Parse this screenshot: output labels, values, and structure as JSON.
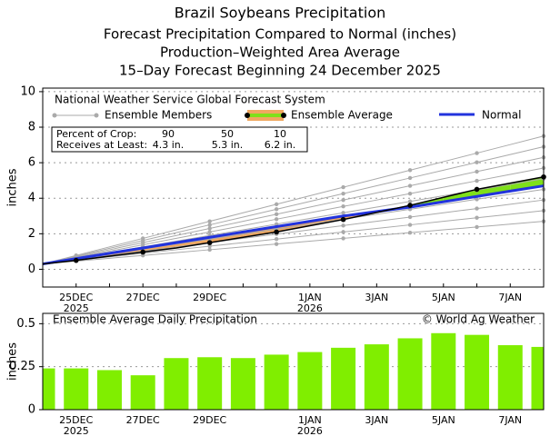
{
  "chart_data": [
    {
      "type": "line",
      "title": "Brazil Soybeans Precipitation",
      "subtitles": [
        "Forecast Precipitation Compared to Normal (inches)",
        "Production–Weighted Area Average",
        "15–Day Forecast Beginning 24 December 2025"
      ],
      "legend_title": "National Weather Service Global Forecast System",
      "y_label": "inches",
      "categories": [
        null,
        "25DEC",
        null,
        "27DEC",
        null,
        "29DEC",
        null,
        null,
        "1JAN",
        null,
        "3JAN",
        null,
        "5JAN",
        null,
        "7JAN",
        null
      ],
      "category_years": [
        null,
        "2025",
        null,
        null,
        null,
        null,
        null,
        null,
        "2026",
        null,
        null,
        null,
        null,
        null,
        null,
        null
      ],
      "ylim": [
        -1,
        10.2
      ],
      "yticks": [
        0,
        2,
        4,
        6,
        8,
        10
      ],
      "grid": true,
      "members": {
        "name": "Ensemble Members",
        "color": "#aaaaaa",
        "series": [
          [
            0.3,
            0.46,
            0.62,
            0.78,
            0.94,
            1.1,
            1.26,
            1.42,
            1.58,
            1.74,
            1.9,
            2.06,
            2.22,
            2.38,
            2.54,
            2.7
          ],
          [
            0.3,
            0.5,
            0.7,
            0.9,
            1.1,
            1.3,
            1.5,
            1.7,
            1.9,
            2.1,
            2.3,
            2.5,
            2.7,
            2.9,
            3.1,
            3.3
          ],
          [
            0.3,
            0.54,
            0.78,
            1.02,
            1.26,
            1.5,
            1.74,
            1.98,
            2.22,
            2.46,
            2.7,
            2.94,
            3.18,
            3.42,
            3.66,
            3.9
          ],
          [
            0.3,
            0.58,
            0.86,
            1.14,
            1.42,
            1.7,
            1.98,
            2.26,
            2.54,
            2.82,
            3.1,
            3.38,
            3.66,
            3.94,
            4.22,
            4.5
          ],
          [
            0.3,
            0.62,
            0.94,
            1.26,
            1.58,
            1.9,
            2.22,
            2.54,
            2.86,
            3.18,
            3.5,
            3.82,
            4.14,
            4.46,
            4.78,
            5.1
          ],
          [
            0.3,
            0.66,
            1.02,
            1.38,
            1.74,
            2.1,
            2.46,
            2.82,
            3.18,
            3.54,
            3.9,
            4.26,
            4.62,
            4.98,
            5.34,
            5.7
          ],
          [
            0.3,
            0.7,
            1.1,
            1.5,
            1.9,
            2.3,
            2.7,
            3.1,
            3.5,
            3.9,
            4.3,
            4.7,
            5.1,
            5.5,
            5.9,
            6.3
          ],
          [
            0.3,
            0.74,
            1.18,
            1.62,
            2.06,
            2.5,
            2.94,
            3.38,
            3.82,
            4.26,
            4.7,
            5.14,
            5.58,
            6.02,
            6.46,
            6.9
          ],
          [
            0.3,
            0.78,
            1.26,
            1.74,
            2.22,
            2.7,
            3.18,
            3.66,
            4.14,
            4.62,
            5.1,
            5.58,
            6.06,
            6.54,
            7.02,
            7.5
          ]
        ]
      },
      "series": [
        {
          "name": "Ensemble Average",
          "color": "#000000",
          "values": [
            0.3,
            0.5,
            0.74,
            0.97,
            1.2,
            1.5,
            1.8,
            2.1,
            2.45,
            2.8,
            3.2,
            3.6,
            4.05,
            4.5,
            4.85,
            5.2
          ]
        },
        {
          "name": "Normal",
          "color": "#2233dd",
          "values": [
            0.3,
            0.6,
            0.9,
            1.2,
            1.5,
            1.8,
            2.1,
            2.4,
            2.7,
            3.0,
            3.25,
            3.5,
            3.8,
            4.1,
            4.4,
            4.7
          ]
        }
      ],
      "above_color": "#7fe01a",
      "below_color": "#f0a860",
      "crop_table": {
        "rows": [
          [
            "Percent of Crop:",
            "90",
            "50",
            "10"
          ],
          [
            "Receives at Least:",
            "4.3 in.",
            "5.3 in.",
            "6.2 in."
          ]
        ]
      }
    },
    {
      "type": "bar",
      "title": "Ensemble Average Daily Precipitation",
      "credit": "© World Ag Weather",
      "y_label": "inches",
      "categories": [
        null,
        "25DEC",
        null,
        "27DEC",
        null,
        "29DEC",
        null,
        null,
        "1JAN",
        null,
        "3JAN",
        null,
        "5JAN",
        null,
        "7JAN",
        null
      ],
      "category_years": [
        null,
        "2025",
        null,
        null,
        null,
        null,
        null,
        null,
        "2026",
        null,
        null,
        null,
        null,
        null,
        null,
        null
      ],
      "values": [
        0.24,
        0.24,
        0.23,
        0.2,
        0.3,
        0.305,
        0.3,
        0.32,
        0.335,
        0.36,
        0.38,
        0.415,
        0.445,
        0.435,
        0.375,
        0.365
      ],
      "color": "#80ee00",
      "ylim": [
        0,
        0.56
      ],
      "yticks": [
        0,
        0.25,
        0.5
      ],
      "grid": true
    }
  ]
}
